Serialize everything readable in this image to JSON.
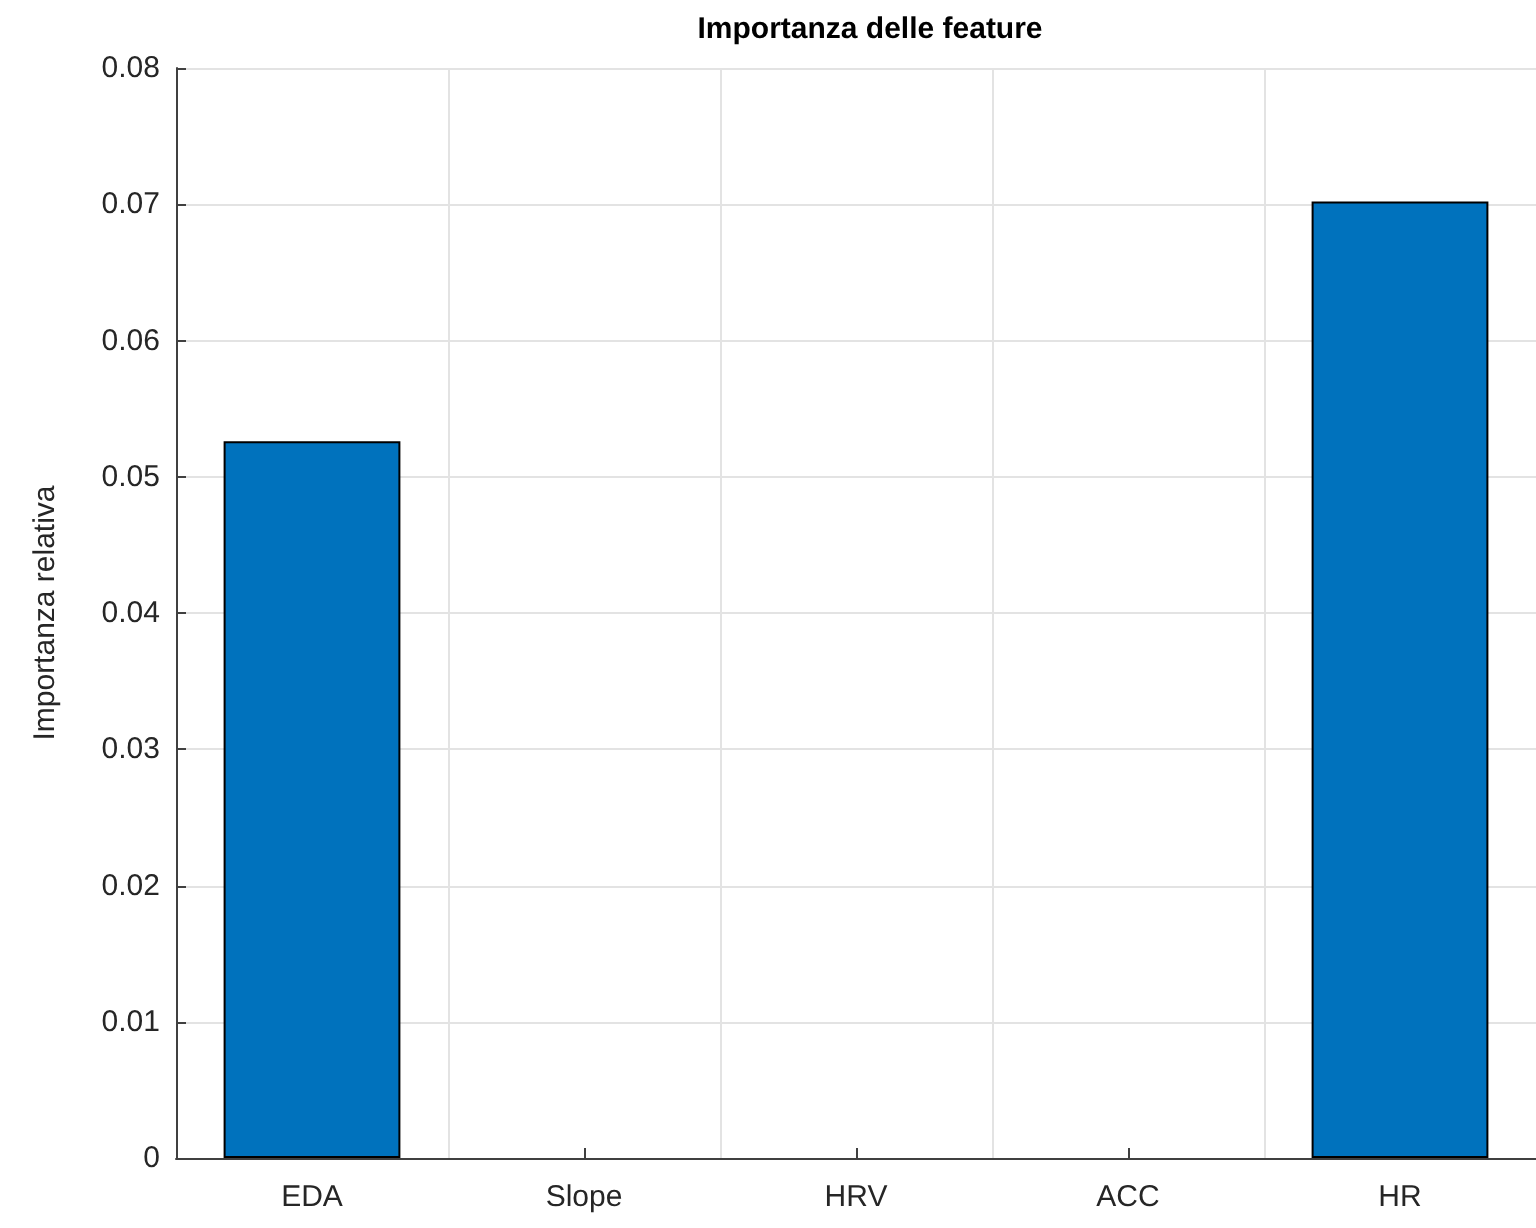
{
  "chart_data": {
    "type": "bar",
    "title": "Importanza delle feature",
    "ylabel": "Importanza relativa",
    "categories": [
      "EDA",
      "Slope",
      "HRV",
      "ACC",
      "HR"
    ],
    "values": [
      0.0526,
      0,
      0,
      0,
      0.0702
    ],
    "color": "#0072bd",
    "ylim": [
      0,
      0.08
    ],
    "yticks": [
      0,
      0.01,
      0.02,
      0.03,
      0.04,
      0.05,
      0.06,
      0.07,
      0.08
    ],
    "grid": true
  }
}
